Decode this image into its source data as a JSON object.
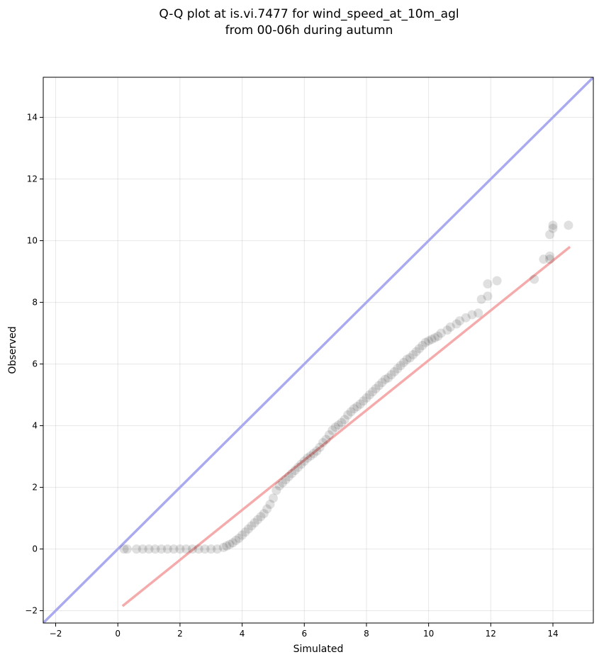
{
  "chart_data": {
    "type": "scatter",
    "title_lines": [
      "Q-Q plot at is.vi.7477 for wind_speed_at_10m_agl",
      "from 00-06h during autumn"
    ],
    "xlabel": "Simulated",
    "ylabel": "Observed",
    "xlim": [
      -2.4,
      15.3
    ],
    "ylim": [
      -2.4,
      15.3
    ],
    "xticks": [
      -2,
      0,
      2,
      4,
      6,
      8,
      10,
      12,
      14
    ],
    "yticks": [
      -2,
      0,
      2,
      4,
      6,
      8,
      10,
      12,
      14
    ],
    "grid": true,
    "identity_line": {
      "color": "#aaaaf0",
      "from": [
        -2.4,
        -2.4
      ],
      "to": [
        15.3,
        15.3
      ]
    },
    "fit_line": {
      "color": "#f4a6a6",
      "from": [
        0.15,
        -1.85
      ],
      "to": [
        14.55,
        9.8
      ]
    },
    "point_color": "#000000",
    "quantiles": [
      [
        0.2,
        0.0
      ],
      [
        0.3,
        0.0
      ],
      [
        0.6,
        0.0
      ],
      [
        0.8,
        0.0
      ],
      [
        1.0,
        0.0
      ],
      [
        1.2,
        0.0
      ],
      [
        1.4,
        0.0
      ],
      [
        1.6,
        0.0
      ],
      [
        1.8,
        0.0
      ],
      [
        2.0,
        0.0
      ],
      [
        2.2,
        0.0
      ],
      [
        2.4,
        0.0
      ],
      [
        2.6,
        0.0
      ],
      [
        2.8,
        0.0
      ],
      [
        3.0,
        0.0
      ],
      [
        3.2,
        0.0
      ],
      [
        3.4,
        0.05
      ],
      [
        3.5,
        0.1
      ],
      [
        3.6,
        0.15
      ],
      [
        3.7,
        0.2
      ],
      [
        3.8,
        0.28
      ],
      [
        3.9,
        0.35
      ],
      [
        4.0,
        0.45
      ],
      [
        4.1,
        0.55
      ],
      [
        4.2,
        0.65
      ],
      [
        4.3,
        0.75
      ],
      [
        4.4,
        0.85
      ],
      [
        4.5,
        0.95
      ],
      [
        4.6,
        1.05
      ],
      [
        4.7,
        1.15
      ],
      [
        4.8,
        1.3
      ],
      [
        4.9,
        1.45
      ],
      [
        5.0,
        1.65
      ],
      [
        5.1,
        1.9
      ],
      [
        5.2,
        2.05
      ],
      [
        5.3,
        2.15
      ],
      [
        5.4,
        2.25
      ],
      [
        5.5,
        2.35
      ],
      [
        5.6,
        2.45
      ],
      [
        5.7,
        2.55
      ],
      [
        5.8,
        2.65
      ],
      [
        5.9,
        2.75
      ],
      [
        6.0,
        2.85
      ],
      [
        6.1,
        2.95
      ],
      [
        6.2,
        3.02
      ],
      [
        6.3,
        3.1
      ],
      [
        6.4,
        3.18
      ],
      [
        6.5,
        3.3
      ],
      [
        6.6,
        3.45
      ],
      [
        6.7,
        3.55
      ],
      [
        6.8,
        3.7
      ],
      [
        6.9,
        3.85
      ],
      [
        7.0,
        3.95
      ],
      [
        7.1,
        4.02
      ],
      [
        7.2,
        4.1
      ],
      [
        7.3,
        4.2
      ],
      [
        7.4,
        4.35
      ],
      [
        7.5,
        4.45
      ],
      [
        7.6,
        4.55
      ],
      [
        7.7,
        4.62
      ],
      [
        7.8,
        4.7
      ],
      [
        7.9,
        4.8
      ],
      [
        8.0,
        4.9
      ],
      [
        8.1,
        5.0
      ],
      [
        8.2,
        5.1
      ],
      [
        8.3,
        5.2
      ],
      [
        8.4,
        5.3
      ],
      [
        8.5,
        5.4
      ],
      [
        8.6,
        5.5
      ],
      [
        8.7,
        5.55
      ],
      [
        8.8,
        5.65
      ],
      [
        8.9,
        5.75
      ],
      [
        9.0,
        5.85
      ],
      [
        9.1,
        5.95
      ],
      [
        9.2,
        6.05
      ],
      [
        9.3,
        6.15
      ],
      [
        9.4,
        6.2
      ],
      [
        9.5,
        6.3
      ],
      [
        9.6,
        6.4
      ],
      [
        9.7,
        6.5
      ],
      [
        9.8,
        6.6
      ],
      [
        9.9,
        6.7
      ],
      [
        10.0,
        6.75
      ],
      [
        10.1,
        6.8
      ],
      [
        10.2,
        6.85
      ],
      [
        10.3,
        6.9
      ],
      [
        10.4,
        7.0
      ],
      [
        10.6,
        7.1
      ],
      [
        10.7,
        7.2
      ],
      [
        10.9,
        7.3
      ],
      [
        11.0,
        7.4
      ],
      [
        11.2,
        7.5
      ],
      [
        11.4,
        7.6
      ],
      [
        11.6,
        7.65
      ],
      [
        11.7,
        8.1
      ],
      [
        11.9,
        8.2
      ],
      [
        11.9,
        8.6
      ],
      [
        12.2,
        8.7
      ],
      [
        13.4,
        8.75
      ],
      [
        13.7,
        9.4
      ],
      [
        13.9,
        9.4
      ],
      [
        13.9,
        9.5
      ],
      [
        13.9,
        10.2
      ],
      [
        14.0,
        10.4
      ],
      [
        14.0,
        10.5
      ],
      [
        14.5,
        10.5
      ]
    ]
  }
}
